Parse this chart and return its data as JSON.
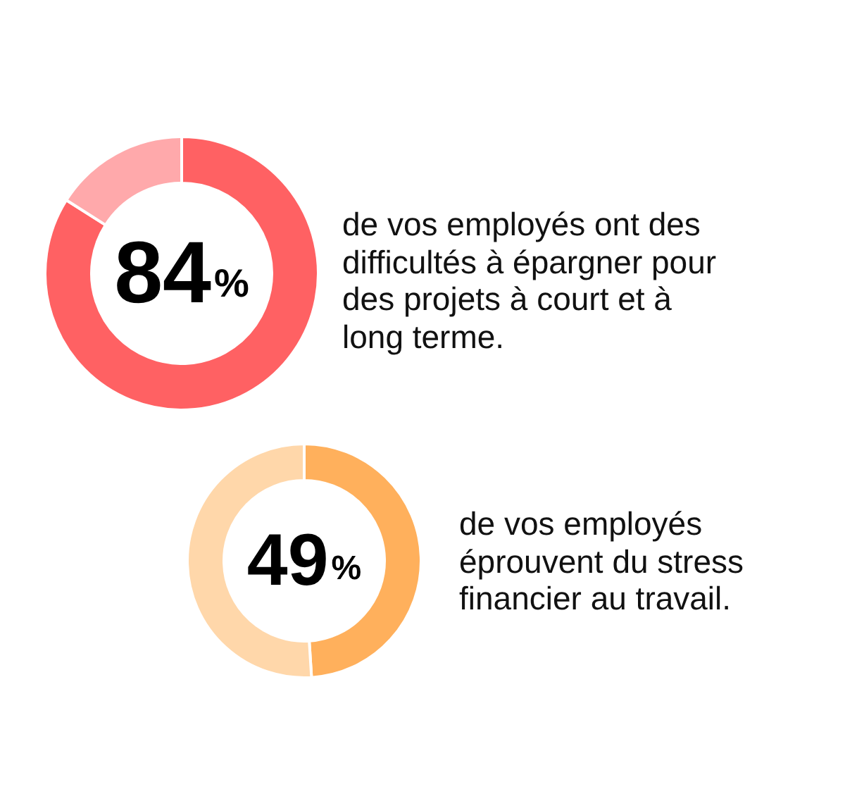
{
  "chart_data": [
    {
      "type": "donut",
      "categories": [
        null,
        null
      ],
      "values": [
        84,
        16
      ],
      "colors": [
        "#ff6163",
        "#ffa9ab"
      ],
      "title": "84%",
      "subtitle": "de vos employés ont des difficultés à épargner pour des projets à court et à long terme."
    },
    {
      "type": "donut",
      "categories": [
        null,
        null
      ],
      "values": [
        49,
        51
      ],
      "colors": [
        "#ffb05c",
        "#ffd7aa"
      ],
      "title": "49%",
      "subtitle": "de vos employés éprouvent du stress financier au travail."
    }
  ]
}
